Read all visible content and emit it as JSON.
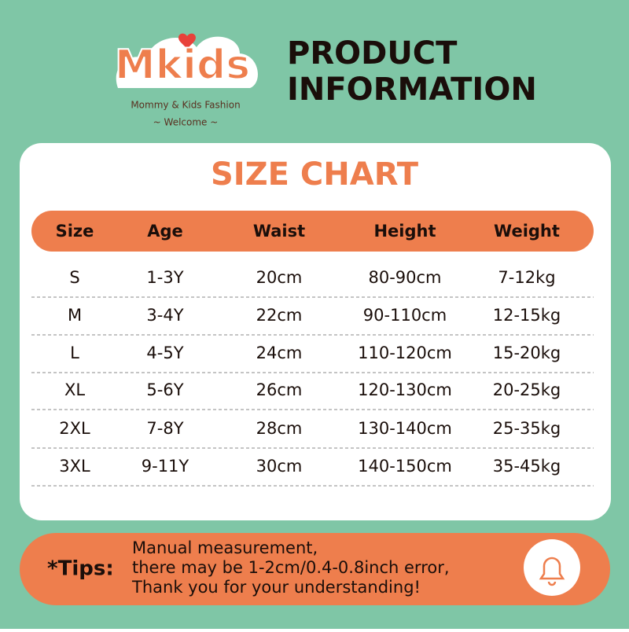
{
  "logo": {
    "brand": "Mkids",
    "tagline": "Mommy & Kids Fashion",
    "welcome": "~ Welcome ~"
  },
  "header": {
    "title_line1": "PRODUCT",
    "title_line2": "INFORMATION"
  },
  "table": {
    "title": "SIZE CHART",
    "columns": [
      "Size",
      "Age",
      "Waist",
      "Height",
      "Weight"
    ],
    "rows": [
      [
        "S",
        "1-3Y",
        "20cm",
        "80-90cm",
        "7-12kg"
      ],
      [
        "M",
        "3-4Y",
        "22cm",
        "90-110cm",
        "12-15kg"
      ],
      [
        "L",
        "4-5Y",
        "24cm",
        "110-120cm",
        "15-20kg"
      ],
      [
        "XL",
        "5-6Y",
        "26cm",
        "120-130cm",
        "20-25kg"
      ],
      [
        "2XL",
        "7-8Y",
        "28cm",
        "130-140cm",
        "25-35kg"
      ],
      [
        "3XL",
        "9-11Y",
        "30cm",
        "140-150cm",
        "35-45kg"
      ]
    ]
  },
  "tips": {
    "label": "*Tips:",
    "lines": [
      "Manual measurement,",
      "there may be 1-2cm/0.4-0.8inch error,",
      "Thank you for your understanding!"
    ]
  }
}
